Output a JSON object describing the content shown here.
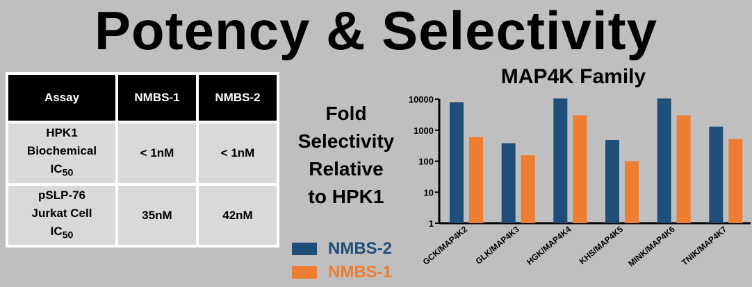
{
  "title": "Potency & Selectivity",
  "table": {
    "headers": [
      "Assay",
      "NMBS-1",
      "NMBS-2"
    ],
    "rows": [
      {
        "assay_lines": [
          "HPK1",
          "Biochemical",
          "IC"
        ],
        "assay_sub": "50",
        "nmbs1": "< 1nM",
        "nmbs2": "< 1nM"
      },
      {
        "assay_lines": [
          "pSLP-76",
          "Jurkat Cell",
          "IC"
        ],
        "assay_sub": "50",
        "nmbs1": "35nM",
        "nmbs2": "42nM"
      }
    ]
  },
  "side_label": [
    "Fold",
    "Selectivity",
    "Relative",
    "to HPK1"
  ],
  "legend": [
    {
      "name": "NMBS-2",
      "color": "#1f4e79"
    },
    {
      "name": "NMBS-1",
      "color": "#ed7d31"
    }
  ],
  "chart_data": {
    "type": "bar",
    "title": "MAP4K Family",
    "categories": [
      "GCK/MAP4K2",
      "GLK/MAP4K3",
      "HGK/MAP4K4",
      "KHS/MAP4K5",
      "MINK/MAP4K6",
      "TNIK/MAP4K7"
    ],
    "series": [
      {
        "name": "NMBS-2",
        "color": "#1f4e79",
        "values": [
          8000,
          380,
          10500,
          480,
          10500,
          1300
        ]
      },
      {
        "name": "NMBS-1",
        "color": "#ed7d31",
        "values": [
          600,
          155,
          3000,
          100,
          3000,
          520
        ]
      }
    ],
    "yscale": "log",
    "ylim": [
      1,
      10000
    ],
    "yticks": [
      "1",
      "10",
      "100",
      "1000",
      "10000"
    ],
    "grid": false,
    "legend_position": "left"
  }
}
